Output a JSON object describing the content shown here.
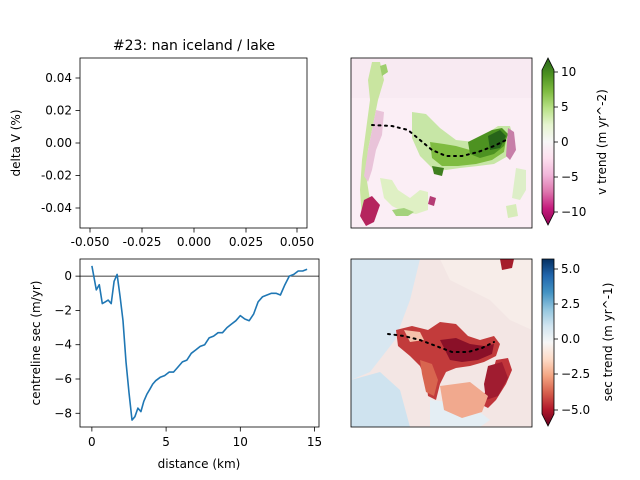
{
  "chart_data": [
    {
      "type": "line",
      "title": "#23: nan iceland / lake",
      "xlabel": "",
      "ylabel": "delta V (%)",
      "xlim": [
        -0.055,
        0.055
      ],
      "ylim": [
        -0.055,
        0.055
      ],
      "x_ticks": [
        "-0.050",
        "-0.025",
        "0.000",
        "0.025",
        "0.050"
      ],
      "y_ticks": [
        "0.04",
        "0.02",
        "0.00",
        "-0.02",
        "-0.04"
      ],
      "series": []
    },
    {
      "type": "heatmap",
      "colorbar_label": "v trend (m yr^-2)",
      "colorbar_ticks": [
        "10",
        "5",
        "0",
        "−5",
        "−10"
      ],
      "clim": [
        -12,
        12
      ],
      "colormap": [
        "#8e0152",
        "#c51b7d",
        "#de77ae",
        "#f1b6da",
        "#fde0ef",
        "#f7f7f7",
        "#e6f5d0",
        "#b8e186",
        "#7fbc41",
        "#4d9221",
        "#276419"
      ],
      "centreline": "dotted black"
    },
    {
      "type": "line",
      "xlabel": "distance (km)",
      "ylabel": "centreline sec (m/yr)",
      "xlim": [
        -0.8,
        15.3
      ],
      "ylim": [
        -8.8,
        1.0
      ],
      "x_ticks": [
        "0",
        "5",
        "10",
        "15"
      ],
      "y_ticks": [
        "0",
        "−2",
        "−4",
        "−6",
        "−8"
      ],
      "zero_line": true,
      "series": [
        {
          "color": "#1f77b4",
          "x": [
            0.0,
            0.3,
            0.5,
            0.7,
            0.9,
            1.1,
            1.3,
            1.5,
            1.7,
            1.9,
            2.1,
            2.3,
            2.5,
            2.7,
            2.9,
            3.1,
            3.3,
            3.5,
            3.7,
            3.9,
            4.1,
            4.3,
            4.6,
            4.9,
            5.2,
            5.5,
            5.8,
            6.1,
            6.4,
            6.7,
            7.0,
            7.3,
            7.6,
            7.9,
            8.2,
            8.5,
            8.8,
            9.1,
            9.4,
            9.7,
            10.0,
            10.3,
            10.6,
            10.9,
            11.2,
            11.5,
            11.8,
            12.1,
            12.4,
            12.7,
            13.0,
            13.3,
            13.6,
            13.9,
            14.2,
            14.5
          ],
          "y": [
            0.6,
            -0.8,
            -0.5,
            -1.6,
            -1.5,
            -1.4,
            -1.6,
            -0.3,
            0.1,
            -1.2,
            -2.6,
            -5.0,
            -6.8,
            -8.4,
            -8.2,
            -7.7,
            -7.9,
            -7.3,
            -6.9,
            -6.6,
            -6.3,
            -6.1,
            -5.9,
            -5.8,
            -5.6,
            -5.6,
            -5.3,
            -5.0,
            -4.9,
            -4.5,
            -4.3,
            -4.1,
            -4.0,
            -3.6,
            -3.5,
            -3.3,
            -3.3,
            -3.0,
            -2.8,
            -2.6,
            -2.3,
            -2.5,
            -2.6,
            -2.2,
            -1.5,
            -1.2,
            -1.1,
            -1.0,
            -1.0,
            -1.1,
            -0.5,
            0.0,
            0.1,
            0.3,
            0.3,
            0.4
          ]
        }
      ]
    },
    {
      "type": "heatmap",
      "colorbar_label": "sec trend (m yr^-1)",
      "colorbar_ticks": [
        "5.0",
        "2.5",
        "0.0",
        "−2.5",
        "−5.0"
      ],
      "clim": [
        -5.6,
        5.6
      ],
      "colormap": [
        "#67001f",
        "#b2182b",
        "#d6604d",
        "#f4a582",
        "#fddbc7",
        "#f7f7f7",
        "#d1e5f0",
        "#92c5de",
        "#4393c3",
        "#2166ac",
        "#053061"
      ],
      "centreline": "dotted black"
    }
  ]
}
